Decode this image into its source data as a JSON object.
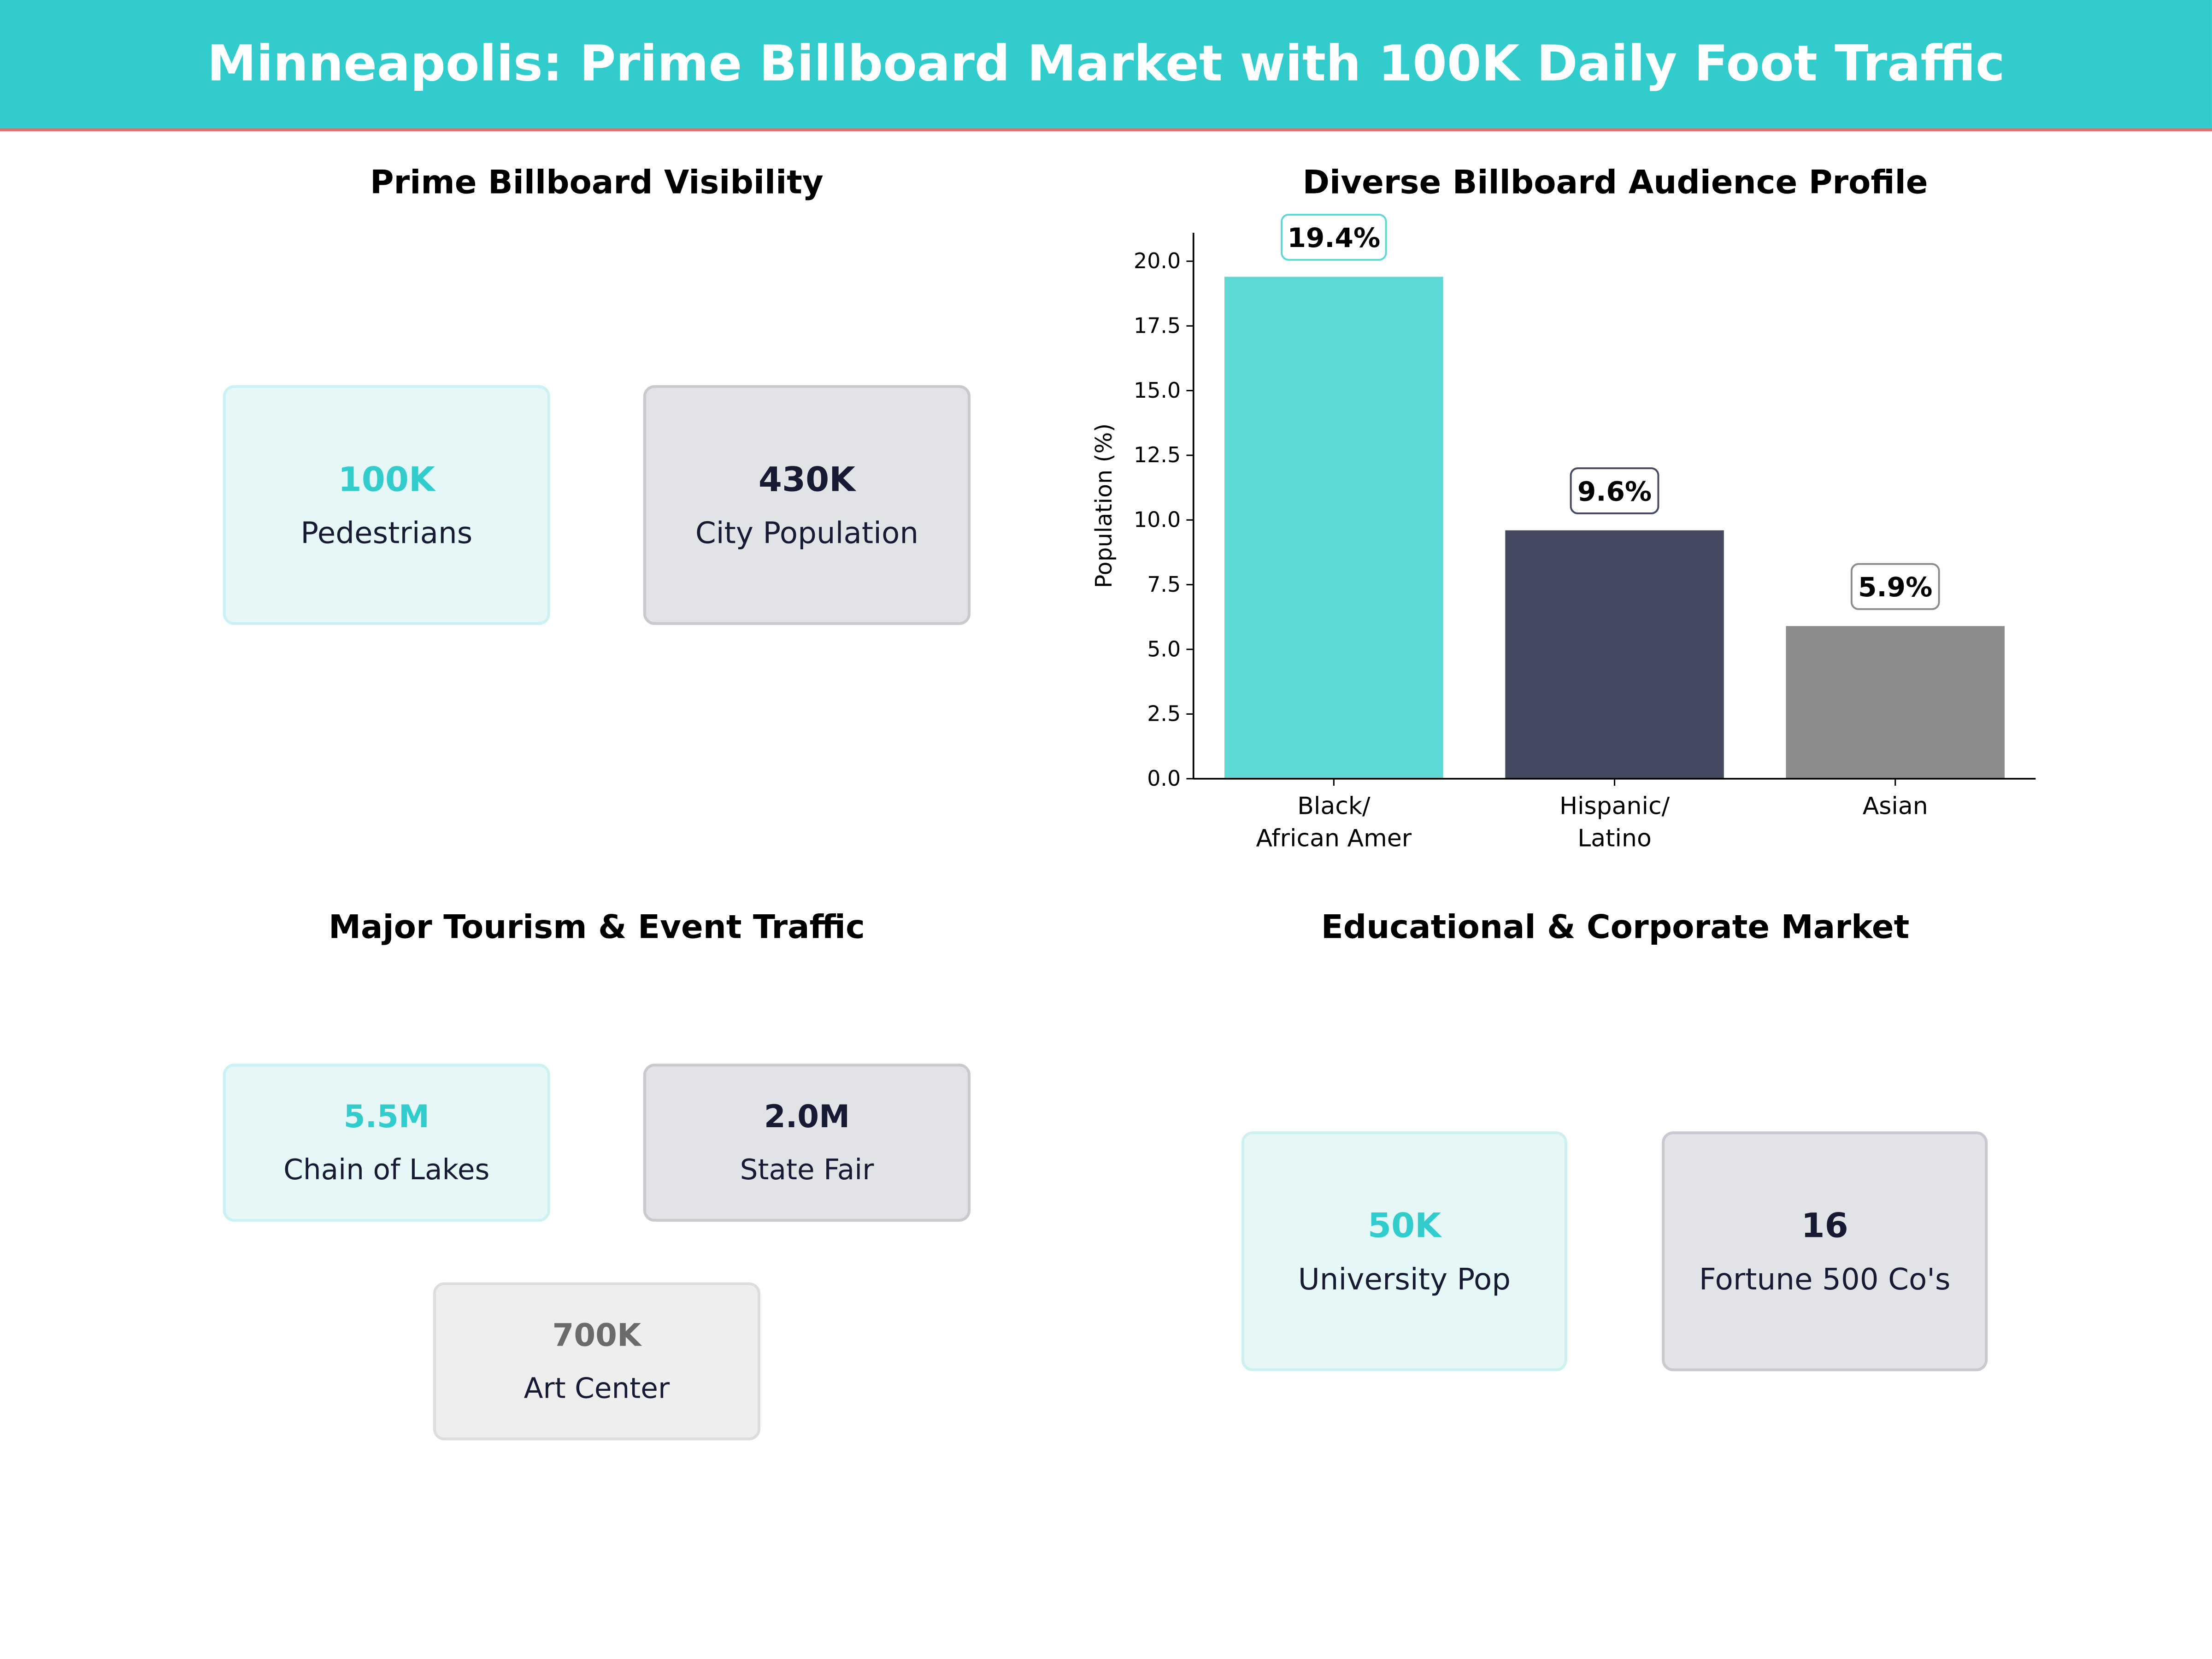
{
  "header": {
    "title": "Minneapolis: Prime Billboard Market with 100K Daily Foot Traffic"
  },
  "colors": {
    "accent": "#33CCCC",
    "dark": "#161B33",
    "header_line": "#E86A6A"
  },
  "visibility": {
    "title": "Prime Billboard Visibility",
    "cards": [
      {
        "value": "100K",
        "label": "Pedestrians"
      },
      {
        "value": "430K",
        "label": "City Population"
      }
    ]
  },
  "tourism": {
    "title": "Major Tourism & Event Traffic",
    "cards": [
      {
        "value": "5.5M",
        "label": "Chain of Lakes"
      },
      {
        "value": "2.0M",
        "label": "State Fair"
      },
      {
        "value": "700K",
        "label": "Art Center"
      }
    ]
  },
  "education": {
    "title": "Educational & Corporate Market",
    "cards": [
      {
        "value": "50K",
        "label": "University Pop"
      },
      {
        "value": "16",
        "label": "Fortune 500 Co's"
      }
    ]
  },
  "chart_data": {
    "type": "bar",
    "title": "Diverse Billboard Audience Profile",
    "xlabel": "",
    "ylabel": "Population (%)",
    "categories": [
      "Black/\nAfrican Amer",
      "Hispanic/\nLatino",
      "Asian"
    ],
    "values": [
      19.4,
      9.6,
      5.9
    ],
    "data_labels": [
      "19.4%",
      "9.6%",
      "5.9%"
    ],
    "colors": [
      "#5DD8D5",
      "#464A60",
      "#8C8C8C"
    ],
    "ylim": [
      0,
      21.1
    ],
    "yticks": [
      "0.0",
      "2.5",
      "5.0",
      "7.5",
      "10.0",
      "12.5",
      "15.0",
      "17.5",
      "20.0"
    ],
    "grid": false
  }
}
